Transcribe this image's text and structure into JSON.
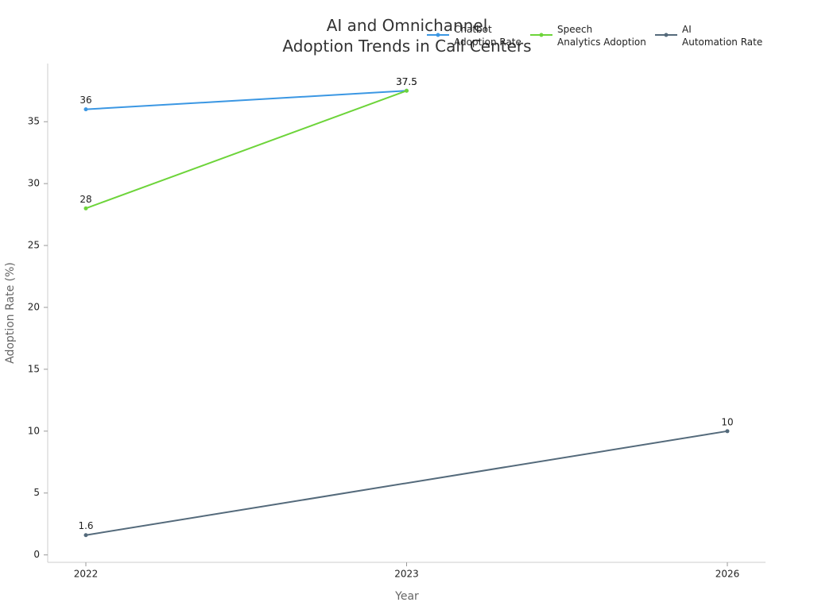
{
  "chart_data": {
    "type": "line",
    "title": "AI and Omnichannel\nAdoption Trends in Call Centers",
    "x_label": "Year",
    "y_label": "Adoption Rate (%)",
    "categories": [
      "2022",
      "2023",
      "2026"
    ],
    "series": [
      {
        "name": "Chatbot Adoption Rate",
        "color": "#3b97e3",
        "x": [
          "2022",
          "2023"
        ],
        "values": [
          36,
          37.5
        ]
      },
      {
        "name": "Speech Analytics Adoption",
        "color": "#6dd43a",
        "x": [
          "2022",
          "2023"
        ],
        "values": [
          28,
          37.5
        ]
      },
      {
        "name": "AI Automation Rate",
        "color": "#546a7b",
        "x": [
          "2022",
          "2026"
        ],
        "values": [
          1.6,
          10
        ]
      }
    ],
    "ylim": [
      -0.6,
      39.7
    ],
    "yticks": [
      0,
      5,
      10,
      15,
      20,
      25,
      30,
      35
    ],
    "legend": "top-right"
  }
}
